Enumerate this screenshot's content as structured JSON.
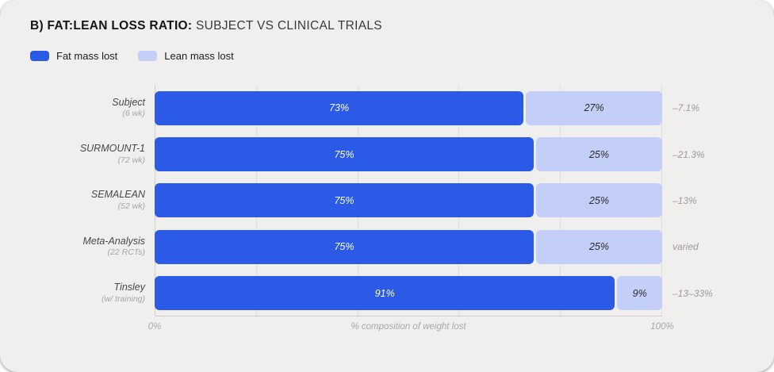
{
  "card": {
    "title_bold": "B) FAT:LEAN LOSS RATIO:",
    "title_regular": " SUBJECT VS CLINICAL TRIALS"
  },
  "legend": {
    "items": [
      {
        "label": "Fat mass lost",
        "color": "#2B5AE6"
      },
      {
        "label": "Lean mass lost",
        "color": "#C3CFF8"
      }
    ]
  },
  "colors": {
    "card_background": "#F0EFED",
    "fat_bar": "#2B5AE6",
    "lean_bar": "#C3CFF8",
    "gridline": "#DEDEDC",
    "axis_line": "#CFCECC",
    "annotation_text": "#9B9B9B"
  },
  "chart_data": {
    "type": "bar",
    "variant": "horizontal-stacked",
    "title": "B) FAT:LEAN LOSS RATIO: SUBJECT VS CLINICAL TRIALS",
    "xlabel": "% composition of weight lost",
    "xlim": [
      0,
      100
    ],
    "x_tick_labels": {
      "min": "0%",
      "max": "100%"
    },
    "gridlines_percent": [
      20,
      40,
      60,
      80,
      100
    ],
    "grid": true,
    "legend_position": "top-left",
    "series": [
      {
        "name": "Fat mass lost",
        "color": "#2B5AE6"
      },
      {
        "name": "Lean mass lost",
        "color": "#C3CFF8"
      }
    ],
    "rows": [
      {
        "label": "Subject",
        "sublabel": "(6 wk)",
        "fat_pct": 73,
        "lean_pct": 27,
        "fat_pct_label": "73%",
        "lean_pct_label": "27%",
        "annotation": "–7.1%"
      },
      {
        "label": "SURMOUNT-1",
        "sublabel": "(72 wk)",
        "fat_pct": 75,
        "lean_pct": 25,
        "fat_pct_label": "75%",
        "lean_pct_label": "25%",
        "annotation": "–21.3%"
      },
      {
        "label": "SEMALEAN",
        "sublabel": "(52 wk)",
        "fat_pct": 75,
        "lean_pct": 25,
        "fat_pct_label": "75%",
        "lean_pct_label": "25%",
        "annotation": "–13%"
      },
      {
        "label": "Meta-Analysis",
        "sublabel": "(22 RCTs)",
        "fat_pct": 75,
        "lean_pct": 25,
        "fat_pct_label": "75%",
        "lean_pct_label": "25%",
        "annotation": "varied"
      },
      {
        "label": "Tinsley",
        "sublabel": "(w/ training)",
        "fat_pct": 91,
        "lean_pct": 9,
        "fat_pct_label": "91%",
        "lean_pct_label": "9%",
        "annotation": "–13–33%"
      }
    ]
  }
}
